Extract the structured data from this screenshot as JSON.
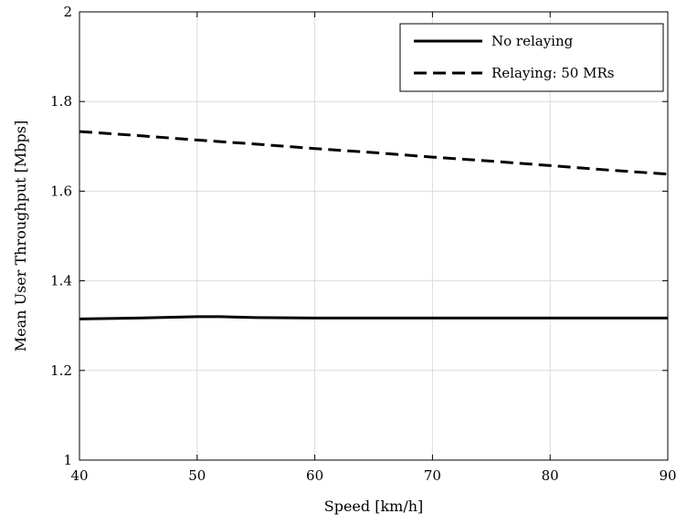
{
  "chart_data": {
    "type": "line",
    "xlabel": "Speed [km/h]",
    "ylabel": "Mean User Throughput [Mbps]",
    "xlim": [
      40,
      90
    ],
    "ylim": [
      1,
      2
    ],
    "xticks": [
      40,
      50,
      60,
      70,
      80,
      90
    ],
    "yticks": [
      1,
      1.2,
      1.4,
      1.6,
      1.8,
      2
    ],
    "ytick_labels": [
      "1",
      "1.2",
      "1.4",
      "1.6",
      "1.8",
      "2"
    ],
    "grid": true,
    "legend_position": "top-right",
    "series": [
      {
        "name": "No relaying",
        "style": "solid",
        "color": "#000000",
        "x": [
          40,
          45,
          50,
          52,
          55,
          60,
          65,
          70,
          75,
          80,
          85,
          90
        ],
        "y": [
          1.315,
          1.317,
          1.32,
          1.32,
          1.318,
          1.317,
          1.317,
          1.317,
          1.317,
          1.317,
          1.317,
          1.317
        ]
      },
      {
        "name": "Relaying: 50 MRs",
        "style": "dashed",
        "color": "#000000",
        "x": [
          40,
          45,
          50,
          55,
          60,
          65,
          70,
          75,
          80,
          85,
          90
        ],
        "y": [
          1.733,
          1.724,
          1.714,
          1.705,
          1.695,
          1.686,
          1.676,
          1.667,
          1.657,
          1.647,
          1.638
        ]
      }
    ]
  }
}
